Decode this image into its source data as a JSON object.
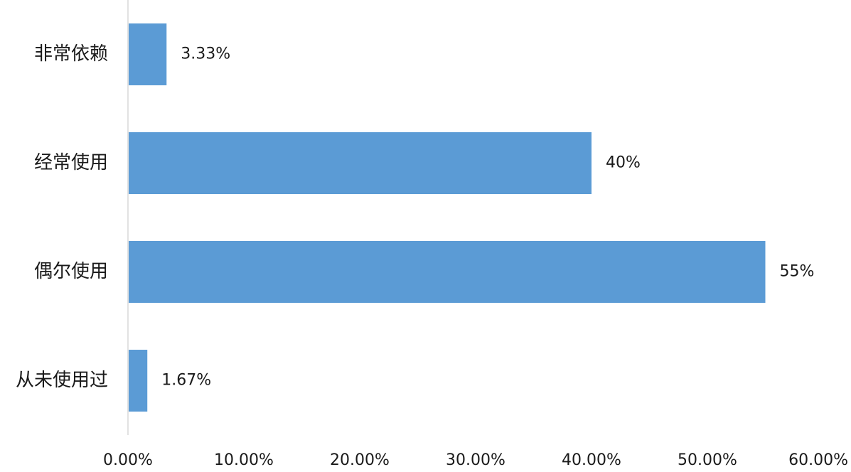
{
  "chart_data": {
    "type": "bar",
    "orientation": "horizontal",
    "categories": [
      "非常依赖",
      "经常使用",
      "偶尔使用",
      "从未使用过"
    ],
    "values": [
      3.33,
      40,
      55,
      1.67
    ],
    "data_labels": [
      "3.33%",
      "40%",
      "55%",
      "1.67%"
    ],
    "x_ticks": [
      "0.00%",
      "10.00%",
      "20.00%",
      "30.00%",
      "40.00%",
      "50.00%",
      "60.00%"
    ],
    "xlim": [
      0,
      60
    ],
    "grid": false,
    "legend": "none",
    "colors": {
      "bar": "#5b9bd5",
      "axis": "#d9d9d9",
      "text": "#1a1a1a"
    }
  }
}
